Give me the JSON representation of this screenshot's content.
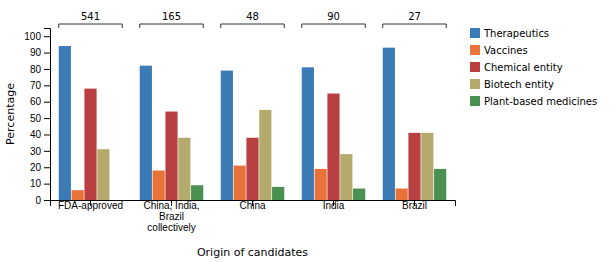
{
  "chart_data": {
    "type": "bar",
    "categories": [
      "FDA-approved",
      "China, India,\nBrazil\ncollectively",
      "China",
      "India",
      "Brazil"
    ],
    "series": [
      {
        "name": "Therapeutics",
        "color": "#3a7ab5",
        "values": [
          94,
          82,
          79,
          81,
          93
        ]
      },
      {
        "name": "Vaccines",
        "color": "#e8733a",
        "values": [
          6,
          18,
          21,
          19,
          7
        ]
      },
      {
        "name": "Chemical entity",
        "color": "#b94040",
        "values": [
          68,
          54,
          38,
          65,
          41
        ]
      },
      {
        "name": "Biotech entity",
        "color": "#b5aa6e",
        "values": [
          31,
          38,
          55,
          28,
          41
        ]
      },
      {
        "name": "Plant-based medicines",
        "color": "#4a9050",
        "values": [
          0,
          9,
          8,
          7,
          19
        ]
      }
    ],
    "annotations": [
      "541",
      "165",
      "48",
      "90",
      "27"
    ],
    "xlabel": "Origin of candidates",
    "ylabel": "Percentage",
    "ylim": [
      0,
      105
    ],
    "yticks": [
      0,
      10,
      20,
      30,
      40,
      50,
      60,
      70,
      80,
      90,
      100
    ],
    "grid": false
  }
}
